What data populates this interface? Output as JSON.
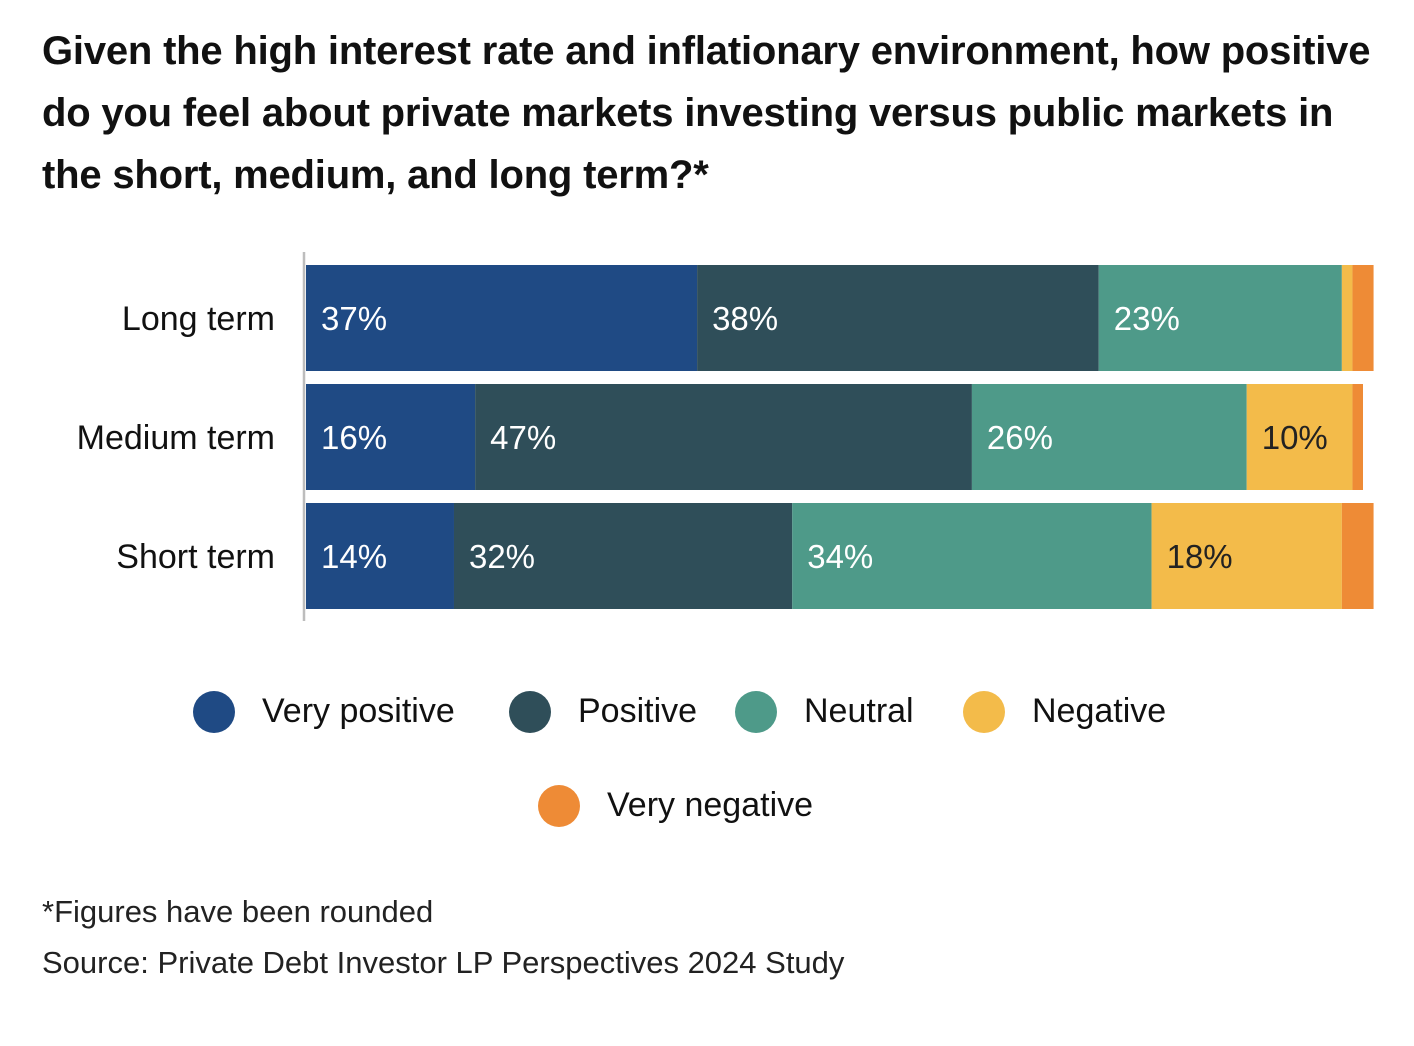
{
  "chart_data": {
    "type": "bar",
    "orientation": "horizontal",
    "stacked": true,
    "title": "Given the high interest rate and inflationary environment, how positive do you feel about private markets investing versus public markets in the short, medium, and long term?*",
    "categories": [
      "Long term",
      "Medium term",
      "Short term"
    ],
    "series": [
      {
        "name": "Very positive",
        "color": "#1f4a84",
        "label_color": "#ffffff",
        "values": [
          37,
          16,
          14
        ],
        "labels": [
          "37%",
          "16%",
          "14%"
        ]
      },
      {
        "name": "Positive",
        "color": "#2f4e59",
        "label_color": "#ffffff",
        "values": [
          38,
          47,
          32
        ],
        "labels": [
          "38%",
          "47%",
          "32%"
        ]
      },
      {
        "name": "Neutral",
        "color": "#4e9a89",
        "label_color": "#ffffff",
        "values": [
          23,
          26,
          34
        ],
        "labels": [
          "23%",
          "26%",
          "34%"
        ]
      },
      {
        "name": "Negative",
        "color": "#f3bb4a",
        "label_color": "#222222",
        "values": [
          1,
          10,
          18
        ],
        "labels": [
          "",
          "10%",
          "18%"
        ]
      },
      {
        "name": "Very negative",
        "color": "#ee8b36",
        "label_color": "#ffffff",
        "values": [
          2,
          1,
          3
        ],
        "labels": [
          "",
          "",
          ""
        ]
      }
    ],
    "xlim": [
      0,
      100
    ],
    "grid": false,
    "legend_position": "bottom-center"
  },
  "footnotes": {
    "rounded": "*Figures have been rounded",
    "source": "Source: Private Debt Investor LP Perspectives 2024 Study"
  }
}
